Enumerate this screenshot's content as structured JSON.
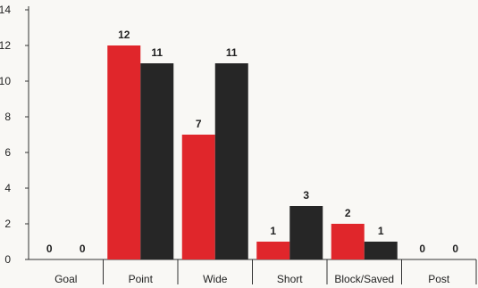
{
  "chart_data": {
    "type": "bar",
    "categories": [
      "Goal",
      "Point",
      "Wide",
      "Short",
      "Block/Saved",
      "Post"
    ],
    "series": [
      {
        "color": "#e0262b",
        "values": [
          0,
          12,
          7,
          1,
          2,
          0
        ]
      },
      {
        "color": "#262626",
        "values": [
          0,
          11,
          11,
          3,
          1,
          0
        ]
      }
    ],
    "ylim": [
      0,
      14
    ],
    "yticks": [
      "0",
      "2",
      "4",
      "6",
      "8",
      "10",
      "12",
      "14"
    ],
    "grid": false,
    "legend": "none"
  }
}
